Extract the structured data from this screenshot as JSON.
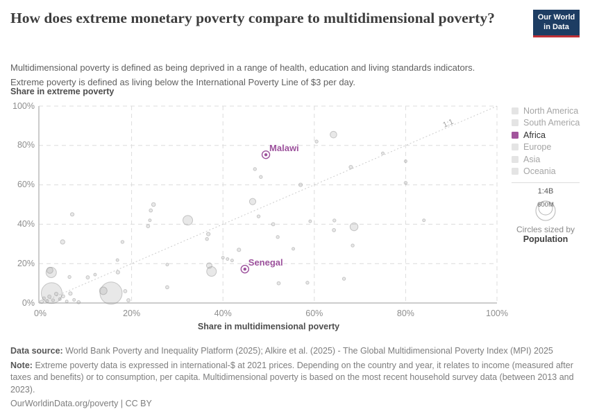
{
  "header": {
    "title": "How does extreme monetary poverty compare to multidimensional poverty?",
    "subtitle_line1": "Multidimensional poverty is defined as being deprived in a range of health, education and living standards indicators.",
    "subtitle_line2": "Extreme poverty is defined as living below the International Poverty Line of $3 per day.",
    "logo": {
      "line1": "Our World",
      "line2": "in Data"
    }
  },
  "chart_data": {
    "type": "scatter",
    "title": "How does extreme monetary poverty compare to multidimensional poverty?",
    "xlabel": "Share in multidimensional poverty",
    "ylabel": "Share in extreme poverty",
    "xlim": [
      0,
      100
    ],
    "ylim": [
      0,
      100
    ],
    "grid": true,
    "x_ticks": [
      {
        "v": 0,
        "label": "0%"
      },
      {
        "v": 20,
        "label": "20%"
      },
      {
        "v": 40,
        "label": "40%"
      },
      {
        "v": 60,
        "label": "60%"
      },
      {
        "v": 80,
        "label": "80%"
      },
      {
        "v": 100,
        "label": "100%"
      }
    ],
    "y_ticks": [
      {
        "v": 0,
        "label": "0%"
      },
      {
        "v": 20,
        "label": "20%"
      },
      {
        "v": 40,
        "label": "40%"
      },
      {
        "v": 60,
        "label": "60%"
      },
      {
        "v": 80,
        "label": "80%"
      },
      {
        "v": 100,
        "label": "100%"
      }
    ],
    "ref_line": {
      "label": "1:1",
      "from": [
        0,
        0
      ],
      "to": [
        100,
        100
      ]
    },
    "series": [
      {
        "name": "Labeled countries (Africa)",
        "points": [
          {
            "label": "Malawi",
            "x": 49.4,
            "y": 75.3
          },
          {
            "label": "Senegal",
            "x": 44.8,
            "y": 17.2
          }
        ]
      },
      {
        "name": "Other countries (unlabeled, sized by population)",
        "points": [
          {
            "x": 0.3,
            "y": 0.6,
            "r": 2.5
          },
          {
            "x": 0.8,
            "y": 2.4,
            "r": 2.2
          },
          {
            "x": 1.5,
            "y": 1.0,
            "r": 2.2
          },
          {
            "x": 2.0,
            "y": 3.2,
            "r": 2.5
          },
          {
            "x": 2.8,
            "y": 1.4,
            "r": 2.2
          },
          {
            "x": 3.5,
            "y": 4.6,
            "r": 2.6
          },
          {
            "x": 4.3,
            "y": 2.0,
            "r": 2.0
          },
          {
            "x": 5.0,
            "y": 3.4,
            "r": 2.4
          },
          {
            "x": 5.8,
            "y": 0.8,
            "r": 2.0
          },
          {
            "x": 6.6,
            "y": 4.8,
            "r": 2.6
          },
          {
            "x": 7.4,
            "y": 1.6,
            "r": 2.0
          },
          {
            "x": 8.4,
            "y": 0.4,
            "r": 2.4
          },
          {
            "x": 2.5,
            "y": 5.0,
            "r": 15.0
          },
          {
            "x": 2.4,
            "y": 15.5,
            "r": 7.5
          },
          {
            "x": 2.1,
            "y": 16.6,
            "r": 4.5
          },
          {
            "x": 6.4,
            "y": 13.2,
            "r": 2.2
          },
          {
            "x": 10.4,
            "y": 13.0,
            "r": 2.4
          },
          {
            "x": 12.0,
            "y": 14.4,
            "r": 2.0
          },
          {
            "x": 15.5,
            "y": 5.0,
            "r": 16.0
          },
          {
            "x": 13.8,
            "y": 6.2,
            "r": 5.5
          },
          {
            "x": 17.0,
            "y": 15.6,
            "r": 2.6
          },
          {
            "x": 16.9,
            "y": 21.8,
            "r": 2.0
          },
          {
            "x": 18.6,
            "y": 6.0,
            "r": 2.4
          },
          {
            "x": 19.3,
            "y": 1.4,
            "r": 2.4
          },
          {
            "x": 4.9,
            "y": 31.0,
            "r": 3.2
          },
          {
            "x": 7.0,
            "y": 45.0,
            "r": 2.6
          },
          {
            "x": 18.0,
            "y": 31.0,
            "r": 2.2
          },
          {
            "x": 23.6,
            "y": 39.0,
            "r": 2.4
          },
          {
            "x": 24.0,
            "y": 42.0,
            "r": 2.0
          },
          {
            "x": 24.2,
            "y": 47.0,
            "r": 2.4
          },
          {
            "x": 24.8,
            "y": 50.0,
            "r": 2.8
          },
          {
            "x": 27.8,
            "y": 19.5,
            "r": 2.0
          },
          {
            "x": 27.8,
            "y": 8.0,
            "r": 2.4
          },
          {
            "x": 32.3,
            "y": 42.0,
            "r": 7.0
          },
          {
            "x": 36.8,
            "y": 35.0,
            "r": 2.6
          },
          {
            "x": 36.5,
            "y": 32.5,
            "r": 2.2
          },
          {
            "x": 37.5,
            "y": 16.0,
            "r": 7.0
          },
          {
            "x": 37.0,
            "y": 19.0,
            "r": 4.0
          },
          {
            "x": 40.0,
            "y": 23.0,
            "r": 2.0
          },
          {
            "x": 41.0,
            "y": 22.3,
            "r": 2.0
          },
          {
            "x": 42.0,
            "y": 21.6,
            "r": 2.0
          },
          {
            "x": 43.5,
            "y": 27.0,
            "r": 2.6
          },
          {
            "x": 46.5,
            "y": 51.5,
            "r": 4.6
          },
          {
            "x": 47.0,
            "y": 68.0,
            "r": 2.2
          },
          {
            "x": 48.3,
            "y": 64.0,
            "r": 2.2
          },
          {
            "x": 47.8,
            "y": 44.0,
            "r": 2.2
          },
          {
            "x": 51.0,
            "y": 40.0,
            "r": 2.4
          },
          {
            "x": 52.0,
            "y": 33.5,
            "r": 2.2
          },
          {
            "x": 52.2,
            "y": 10.0,
            "r": 2.4
          },
          {
            "x": 55.4,
            "y": 27.5,
            "r": 2.0
          },
          {
            "x": 57.0,
            "y": 60.0,
            "r": 2.6
          },
          {
            "x": 58.5,
            "y": 10.3,
            "r": 2.2
          },
          {
            "x": 59.1,
            "y": 41.5,
            "r": 2.0
          },
          {
            "x": 60.5,
            "y": 82.0,
            "r": 2.2
          },
          {
            "x": 64.2,
            "y": 85.5,
            "r": 4.8
          },
          {
            "x": 64.4,
            "y": 41.9,
            "r": 2.2
          },
          {
            "x": 64.3,
            "y": 37.0,
            "r": 2.4
          },
          {
            "x": 66.5,
            "y": 12.3,
            "r": 2.2
          },
          {
            "x": 68.0,
            "y": 69.0,
            "r": 2.6
          },
          {
            "x": 68.7,
            "y": 38.7,
            "r": 5.7
          },
          {
            "x": 68.4,
            "y": 29.2,
            "r": 2.2
          },
          {
            "x": 75.0,
            "y": 76.0,
            "r": 2.0
          },
          {
            "x": 80.0,
            "y": 72.0,
            "r": 2.0
          },
          {
            "x": 80.0,
            "y": 61.0,
            "r": 2.2
          },
          {
            "x": 84.0,
            "y": 42.0,
            "r": 2.0
          }
        ]
      }
    ]
  },
  "legend": {
    "items": [
      {
        "label": "North America",
        "active": false
      },
      {
        "label": "South America",
        "active": false
      },
      {
        "label": "Africa",
        "active": true
      },
      {
        "label": "Europe",
        "active": false
      },
      {
        "label": "Asia",
        "active": false
      },
      {
        "label": "Oceania",
        "active": false
      }
    ],
    "size_legend": {
      "outer_label": "1:4B",
      "inner_label": "600M",
      "caption": "Circles sized by",
      "caption_bold": "Population"
    }
  },
  "footer": {
    "data_source_label": "Data source:",
    "data_source": "World Bank Poverty and Inequality Platform (2025); Alkire et al. (2025) - The Global Multidimensional Poverty Index (MPI) 2025",
    "note_label": "Note:",
    "note": "Extreme poverty data is expressed in international-$ at 2021 prices. Depending on the country and year, it relates to income (measured after taxes and benefits) or to consumption, per capita. Multidimensional poverty is based on the most recent household survey data (between 2013 and 2023).",
    "link": "OurWorldinData.org/poverty | CC BY"
  },
  "colors": {
    "accent_purple": "#a2559c",
    "label_purple": "#9c519c",
    "logo_navy": "#1d3d63",
    "logo_red": "#bf3036",
    "bubble_gray": "#e3e3e3",
    "grid_gray": "#dcdcdc"
  }
}
